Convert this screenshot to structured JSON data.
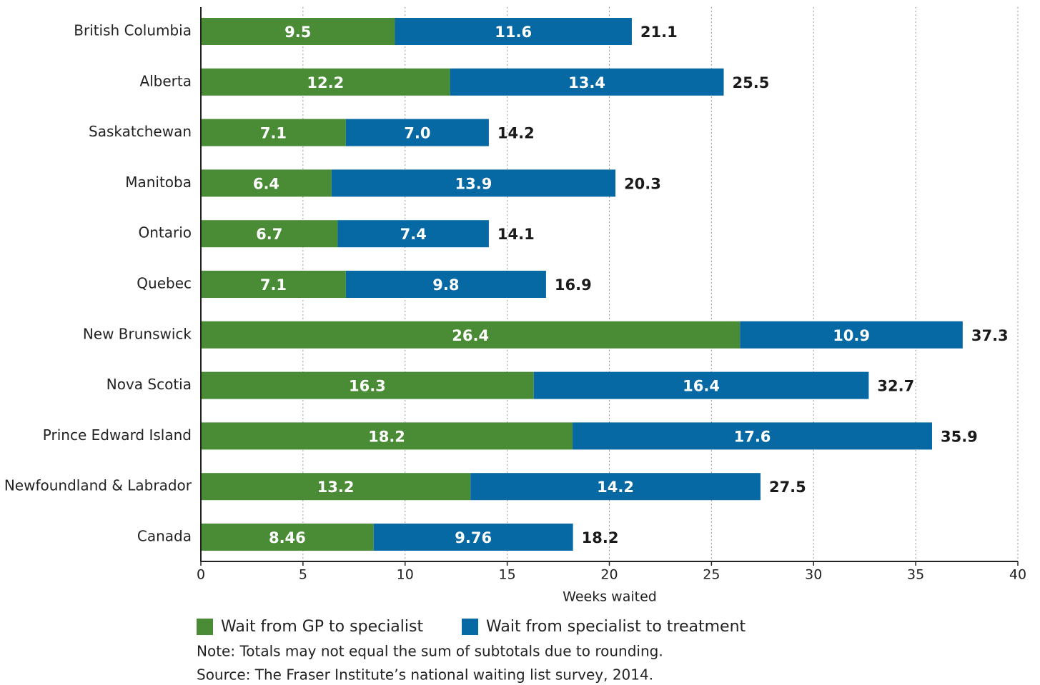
{
  "chart_data": {
    "type": "stacked_barh",
    "categories": [
      "British Columbia",
      "Alberta",
      "Saskatchewan",
      "Manitoba",
      "Ontario",
      "Quebec",
      "New Brunswick",
      "Nova Scotia",
      "Prince Edward Island",
      "Newfoundland & Labrador",
      "Canada"
    ],
    "series": [
      {
        "name": "Wait from GP to specialist",
        "color": "#4a8c36",
        "values": [
          9.5,
          12.2,
          7.1,
          6.4,
          6.7,
          7.1,
          26.4,
          16.3,
          18.2,
          13.2,
          8.46
        ]
      },
      {
        "name": "Wait from specialist to treatment",
        "color": "#0769a4",
        "values": [
          11.6,
          13.4,
          7.0,
          13.9,
          7.4,
          9.8,
          10.9,
          16.4,
          17.6,
          14.2,
          9.76
        ],
        "value_labels": [
          "11.6",
          "13.4",
          "7.0",
          "13.9",
          "7.4",
          "9.8",
          "10.9",
          "16.4",
          "17.6",
          "14.2",
          "9.76"
        ]
      }
    ],
    "totals": [
      21.1,
      25.5,
      14.2,
      20.3,
      14.1,
      16.9,
      37.3,
      32.7,
      35.9,
      27.5,
      18.2
    ],
    "xlabel": "Weeks waited",
    "xlim": [
      0,
      40
    ],
    "xticks": [
      0,
      5,
      10,
      15,
      20,
      25,
      30,
      35,
      40
    ],
    "grid": true,
    "legend": "bottom",
    "note": "Note: Totals may not equal the sum of subtotals due to rounding.",
    "source": "Source: The Fraser Institute’s national waiting list survey, 2014."
  }
}
